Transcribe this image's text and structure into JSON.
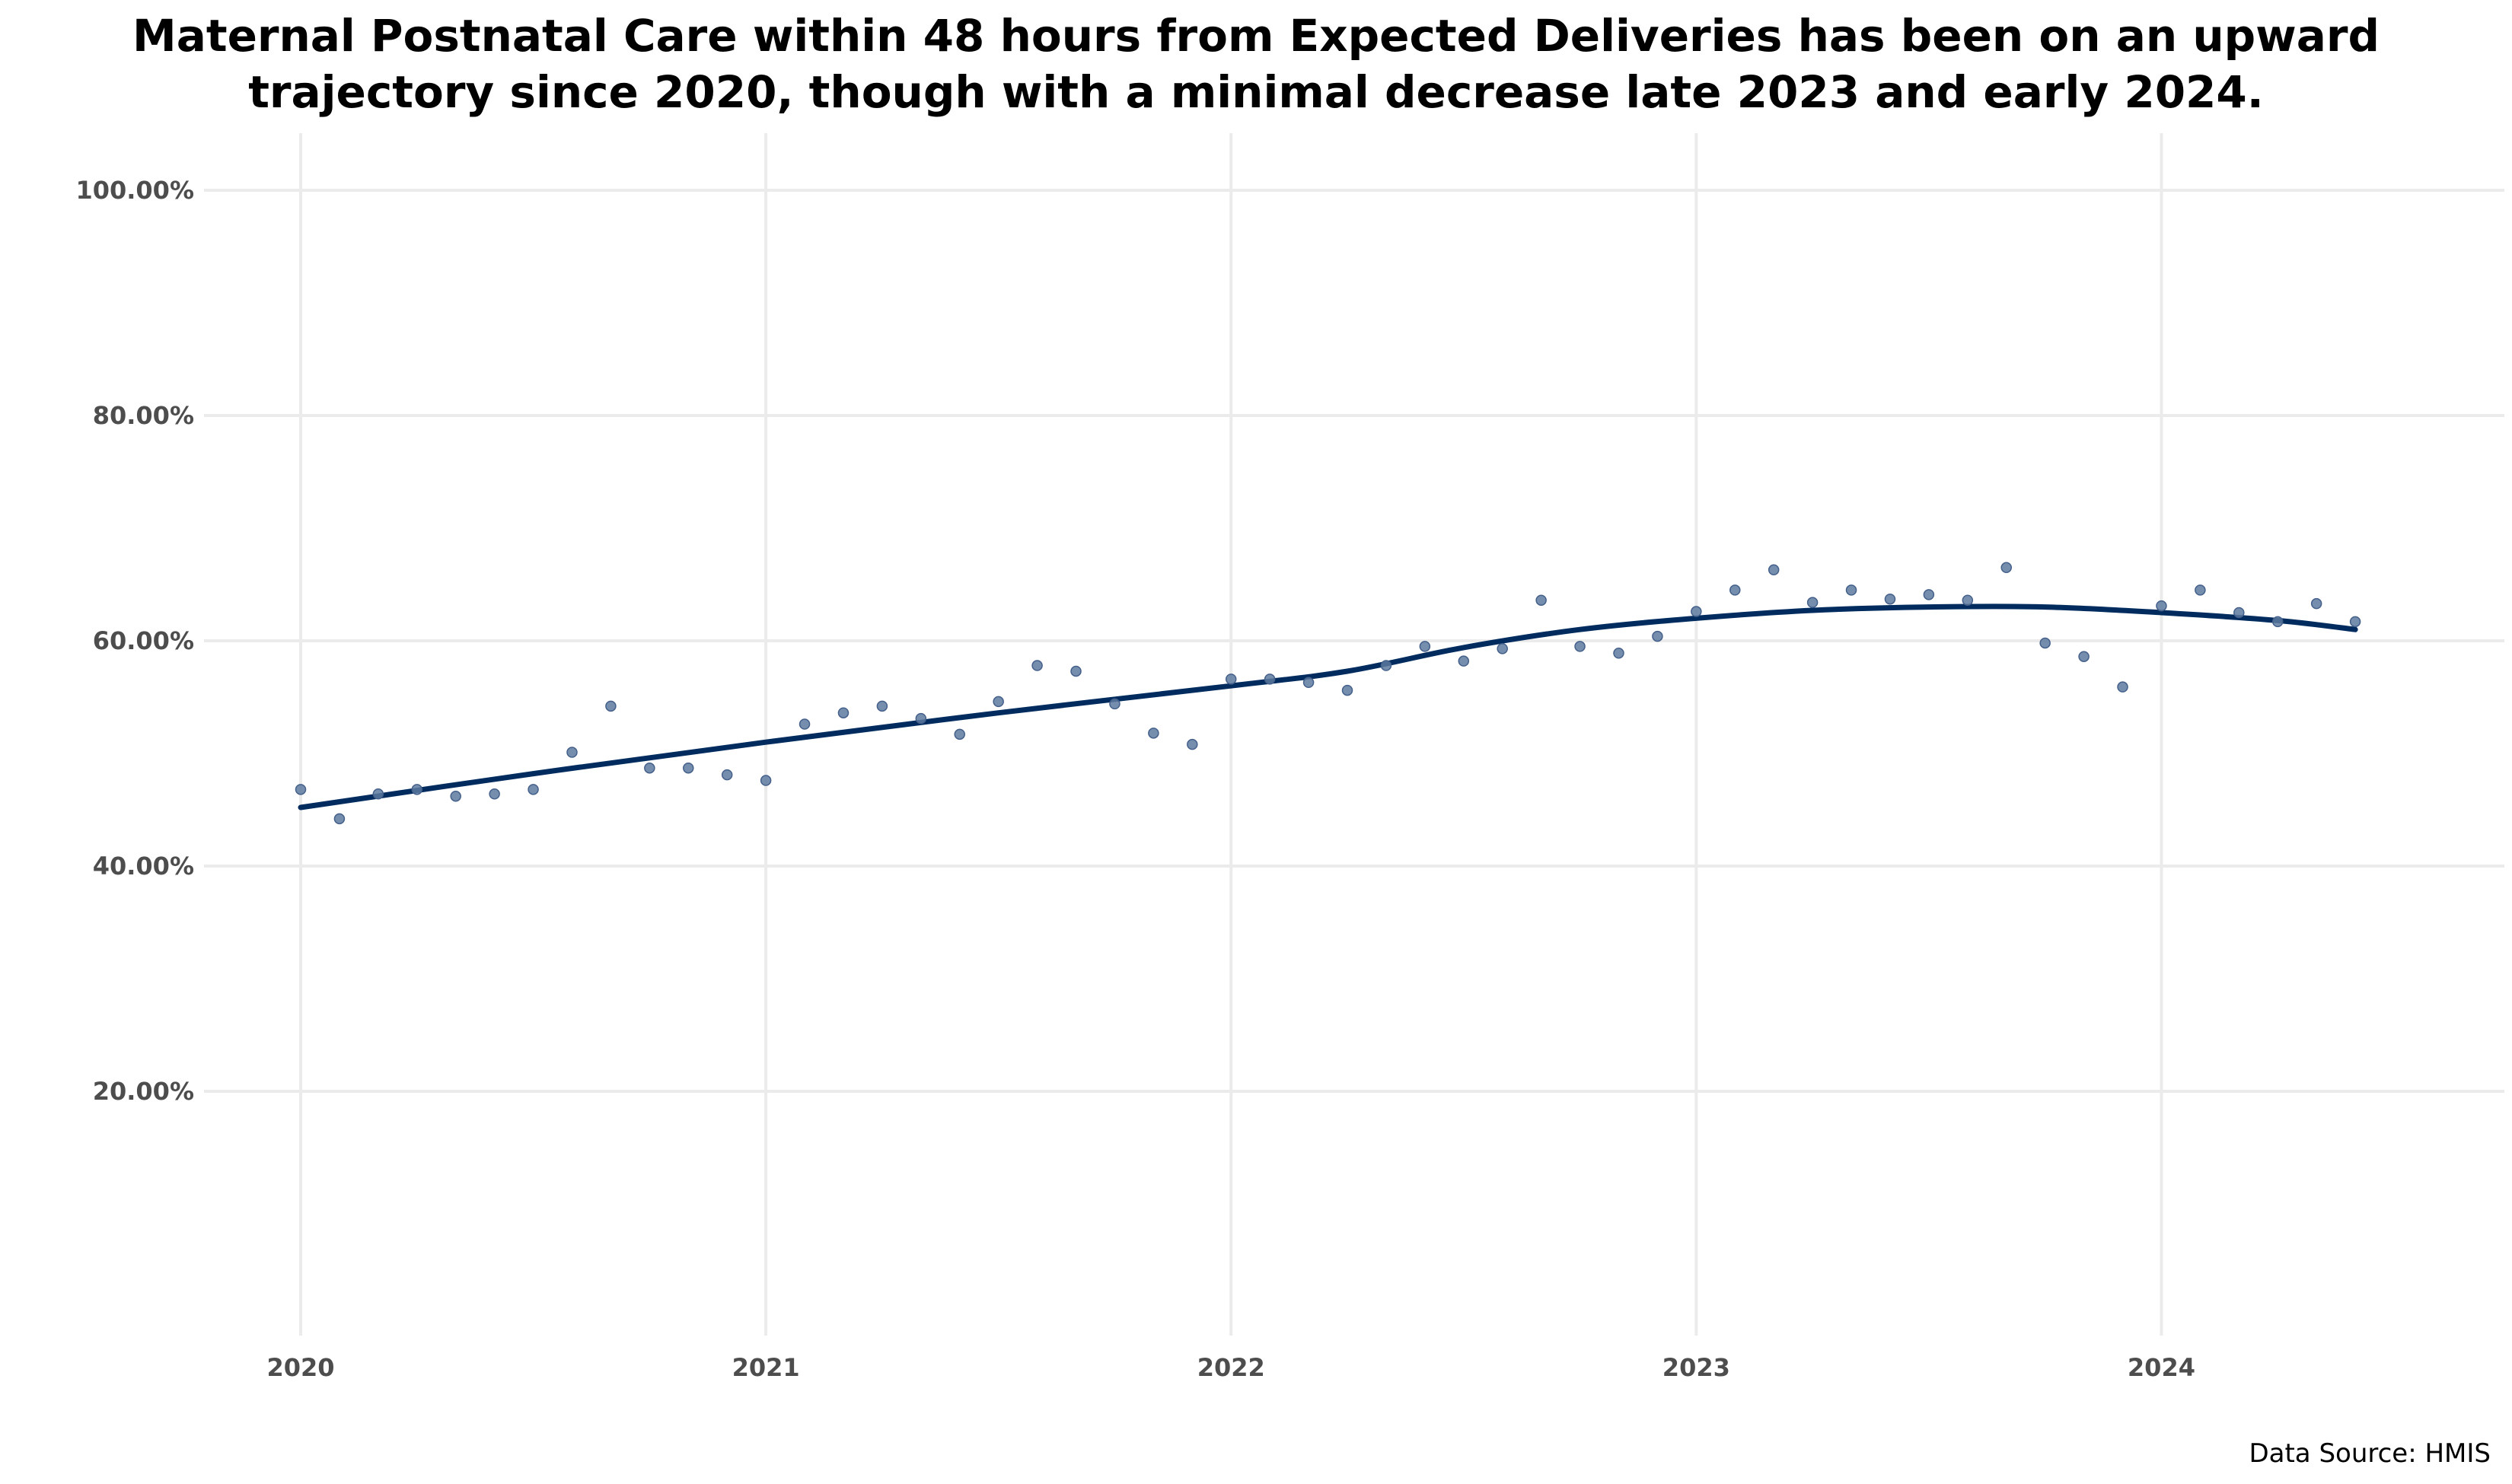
{
  "title_lines": [
    "Maternal Postnatal Care within 48 hours from Expected Deliveries has been on an upward",
    "trajectory since 2020, though with a minimal decrease late 2023 and early 2024."
  ],
  "source": "Data Source: HMIS",
  "colors": {
    "trend": "#002b5e",
    "points": "#5d7aa0",
    "grid": "#ebebeb"
  },
  "chart_data": {
    "type": "scatter",
    "title": "Maternal Postnatal Care within 48 hours from Expected Deliveries has been on an upward trajectory since 2020, though with a minimal decrease late 2023 and early 2024.",
    "xlabel": "",
    "ylabel": "",
    "x_ticks": [
      "2020",
      "2021",
      "2022",
      "2023",
      "2024"
    ],
    "y_ticks": [
      "20.00%",
      "40.00%",
      "60.00%",
      "80.00%",
      "100.00%"
    ],
    "y_tick_values": [
      20,
      40,
      60,
      80,
      100
    ],
    "ylim": [
      0,
      105
    ],
    "xlim": [
      "2019-10",
      "2024-09"
    ],
    "grid": true,
    "legend": "none",
    "series": [
      {
        "type": "scatter",
        "x": [
          "2020-01",
          "2020-02",
          "2020-03",
          "2020-04",
          "2020-05",
          "2020-06",
          "2020-07",
          "2020-08",
          "2020-09",
          "2020-10",
          "2020-11",
          "2020-12",
          "2021-01",
          "2021-02",
          "2021-03",
          "2021-04",
          "2021-05",
          "2021-06",
          "2021-07",
          "2021-08",
          "2021-09",
          "2021-10",
          "2021-11",
          "2021-12",
          "2022-01",
          "2022-02",
          "2022-03",
          "2022-04",
          "2022-05",
          "2022-06",
          "2022-07",
          "2022-08",
          "2022-09",
          "2022-10",
          "2022-11",
          "2022-12",
          "2023-01",
          "2023-02",
          "2023-03",
          "2023-04",
          "2023-05",
          "2023-06",
          "2023-07",
          "2023-08",
          "2023-09",
          "2023-10",
          "2023-11",
          "2023-12",
          "2024-01",
          "2024-02",
          "2024-03",
          "2024-04",
          "2024-05",
          "2024-06"
        ],
        "values": [
          46.8,
          44.2,
          46.4,
          46.8,
          46.2,
          46.4,
          46.8,
          50.1,
          54.2,
          48.7,
          48.7,
          48.1,
          47.6,
          52.6,
          53.6,
          54.2,
          53.1,
          51.7,
          54.6,
          57.8,
          57.3,
          54.4,
          51.8,
          50.8,
          56.6,
          56.6,
          56.3,
          55.6,
          57.8,
          59.5,
          58.2,
          59.3,
          63.6,
          59.5,
          58.9,
          60.4,
          62.6,
          64.5,
          66.3,
          63.4,
          64.5,
          63.7,
          64.1,
          63.6,
          66.5,
          59.8,
          58.6,
          55.9,
          63.1,
          64.5,
          62.5,
          61.7,
          63.3,
          61.7
        ]
      },
      {
        "type": "line",
        "x": [
          "2020-01",
          "2020-07",
          "2021-01",
          "2021-07",
          "2022-01",
          "2022-04",
          "2022-07",
          "2022-10",
          "2023-01",
          "2023-04",
          "2023-07",
          "2023-10",
          "2024-01",
          "2024-04",
          "2024-06"
        ],
        "values": [
          45.2,
          48.2,
          51.0,
          53.6,
          56.0,
          57.3,
          59.4,
          61.0,
          62.0,
          62.7,
          63.0,
          63.0,
          62.5,
          61.8,
          61.0
        ]
      }
    ]
  }
}
